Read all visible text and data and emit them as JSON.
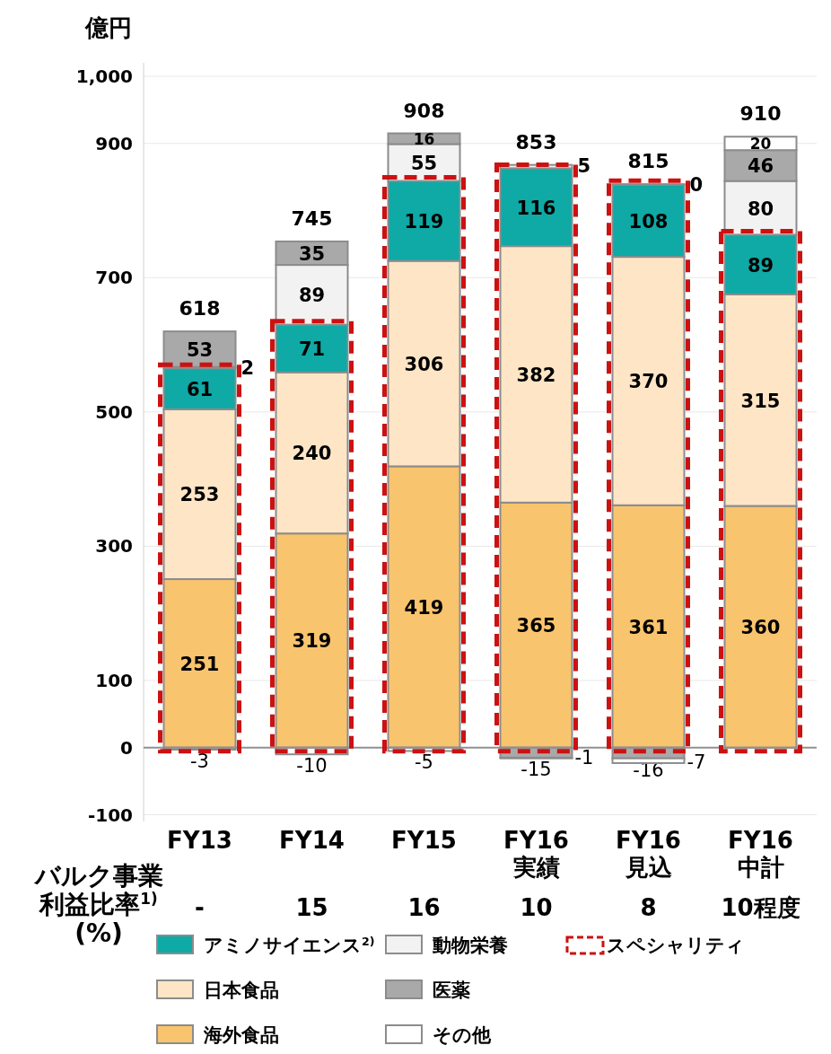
{
  "chart_data": {
    "type": "bar",
    "stacked": true,
    "ylabel": "億円",
    "categories": [
      "FY13",
      "FY14",
      "FY15",
      "FY16\n実績",
      "FY16\n見込",
      "FY16\n中計"
    ],
    "series": [
      {
        "name": "海外食品",
        "color": "#f9c46e",
        "values": [
          251,
          319,
          419,
          365,
          361,
          360
        ]
      },
      {
        "name": "日本食品",
        "color": "#fde5c6",
        "values": [
          253,
          240,
          306,
          382,
          370,
          315
        ]
      },
      {
        "name": "アミノサイエンス$^{2)}$",
        "color": "#0fa9a6",
        "values": [
          61,
          71,
          119,
          116,
          108,
          89
        ]
      },
      {
        "name": "動物栄養",
        "color": "#f2f2f2",
        "values": [
          2,
          89,
          55,
          5,
          0,
          80
        ]
      },
      {
        "name": "医薬",
        "color": "#a9a9a9",
        "values": [
          53,
          35,
          16,
          -15,
          -16,
          46
        ]
      },
      {
        "name": "その他",
        "color": "#ffffff",
        "values": [
          -3,
          -10,
          -5,
          -1,
          -7,
          20
        ]
      }
    ],
    "totals": [
      "618",
      "745",
      "908",
      "853",
      "815",
      "910"
    ],
    "data_labels": true,
    "ylim": [
      -110,
      1020
    ],
    "yticks": [
      -100,
      0,
      100,
      300,
      500,
      700,
      900,
      {
        "value": 1000,
        "label": "1,000"
      }
    ],
    "grid": "y",
    "legend": "bottom",
    "annotations": [
      "バルク事業利益比率$^{1)}$(%)",
      "-",
      "15",
      "16",
      "10",
      "8",
      "10程度",
      "スペシャリティ"
    ]
  }
}
